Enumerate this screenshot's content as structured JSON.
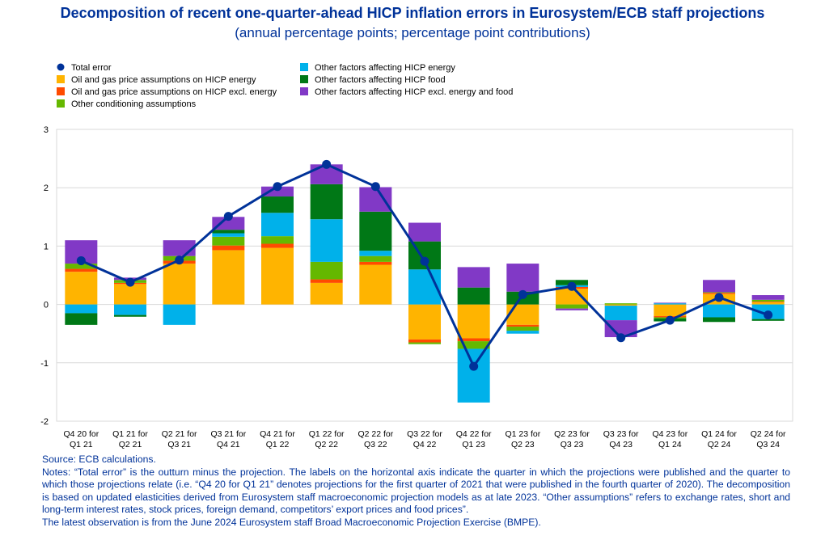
{
  "title": "Decomposition of recent one-quarter-ahead HICP inflation errors in Eurosystem/ECB staff projections",
  "subtitle": "(annual percentage points; percentage point contributions)",
  "notes": {
    "source": "Source: ECB calculations.",
    "notes_text": "Notes: “Total error” is the outturn minus the projection. The labels on the horizontal axis indicate the quarter in which the projections were published and the quarter to which those projections relate (i.e. “Q4 20 for Q1 21” denotes projections for the first quarter of 2021 that were published in the fourth quarter of 2020). The decomposition is based on updated elasticities derived from Eurosystem staff macroeconomic projection models as at late 2023. “Other assumptions” refers to exchange rates, short and long-term interest rates, stock prices, foreign demand, competitors’ export prices and food prices”.",
    "latest": "The latest observation is from the June 2024 Eurosystem staff Broad Macroeconomic Projection Exercise (BMPE)."
  },
  "chart_data": {
    "type": "bar",
    "stacked": true,
    "ylim": [
      -2,
      3
    ],
    "yticks": [
      -2,
      -1,
      0,
      1,
      2,
      3
    ],
    "grid": true,
    "legend_position": "top-left",
    "categories": [
      [
        "Q4 20 for",
        "Q1 21"
      ],
      [
        "Q1 21 for",
        "Q2 21"
      ],
      [
        "Q2 21 for",
        "Q3 21"
      ],
      [
        "Q3 21 for",
        "Q4 21"
      ],
      [
        "Q4 21 for",
        "Q1 22"
      ],
      [
        "Q1 22 for",
        "Q2 22"
      ],
      [
        "Q2 22 for",
        "Q3 22"
      ],
      [
        "Q3 22 for",
        "Q4 22"
      ],
      [
        "Q4 22 for",
        "Q1 23"
      ],
      [
        "Q1 23 for",
        "Q2 23"
      ],
      [
        "Q2 23 for",
        "Q3 23"
      ],
      [
        "Q3 23 for",
        "Q4 23"
      ],
      [
        "Q4 23 for",
        "Q1 24"
      ],
      [
        "Q1 24 for",
        "Q2 24"
      ],
      [
        "Q2 24 for",
        "Q3 24"
      ]
    ],
    "series": [
      {
        "name": "Oil and gas price assumptions on HICP energy",
        "color": "#ffb400",
        "values": [
          0.56,
          0.35,
          0.7,
          0.93,
          0.97,
          0.37,
          0.68,
          -0.6,
          -0.58,
          -0.35,
          0.27,
          -0.02,
          -0.2,
          0.18,
          0.04
        ]
      },
      {
        "name": "Oil and gas price assumptions on HICP excl. energy",
        "color": "#ff4b00",
        "values": [
          0.05,
          0.02,
          0.05,
          0.08,
          0.07,
          0.06,
          0.05,
          -0.05,
          -0.05,
          -0.03,
          0.03,
          0.0,
          -0.02,
          0.02,
          0.01
        ]
      },
      {
        "name": "Other conditioning assumptions",
        "color": "#65b800",
        "values": [
          0.09,
          0.05,
          0.08,
          0.15,
          0.13,
          0.3,
          0.1,
          -0.03,
          -0.13,
          -0.07,
          -0.07,
          0.02,
          -0.02,
          0.01,
          0.03
        ]
      },
      {
        "name": "Other factors affecting HICP energy",
        "color": "#00b1ea",
        "values": [
          -0.15,
          -0.18,
          -0.35,
          0.06,
          0.4,
          0.73,
          0.09,
          0.6,
          -0.92,
          -0.05,
          0.03,
          -0.25,
          0.02,
          -0.22,
          -0.25
        ]
      },
      {
        "name": "Other factors affecting HICP food",
        "color": "#007816",
        "values": [
          -0.2,
          -0.03,
          0.0,
          0.06,
          0.28,
          0.6,
          0.67,
          0.48,
          0.29,
          0.22,
          0.09,
          0.0,
          -0.05,
          -0.08,
          -0.03
        ]
      },
      {
        "name": "Other factors affecting HICP excl. energy and food",
        "color": "#8139c6",
        "values": [
          0.4,
          0.04,
          0.27,
          0.22,
          0.17,
          0.34,
          0.42,
          0.32,
          0.35,
          0.48,
          -0.03,
          -0.29,
          0.01,
          0.21,
          0.08
        ]
      }
    ],
    "line": {
      "name": "Total error",
      "color": "#003299",
      "values": [
        0.75,
        0.38,
        0.76,
        1.51,
        2.02,
        2.4,
        2.02,
        0.74,
        -1.06,
        0.17,
        0.31,
        -0.57,
        -0.27,
        0.12,
        -0.18
      ]
    },
    "legend_columns": [
      [
        "Total error",
        "Oil and gas price assumptions on HICP energy",
        "Oil and gas price assumptions on HICP excl. energy",
        "Other conditioning assumptions"
      ],
      [
        "Other factors affecting HICP energy",
        "Other factors affecting HICP food",
        "Other factors affecting HICP excl. energy and food"
      ]
    ]
  }
}
